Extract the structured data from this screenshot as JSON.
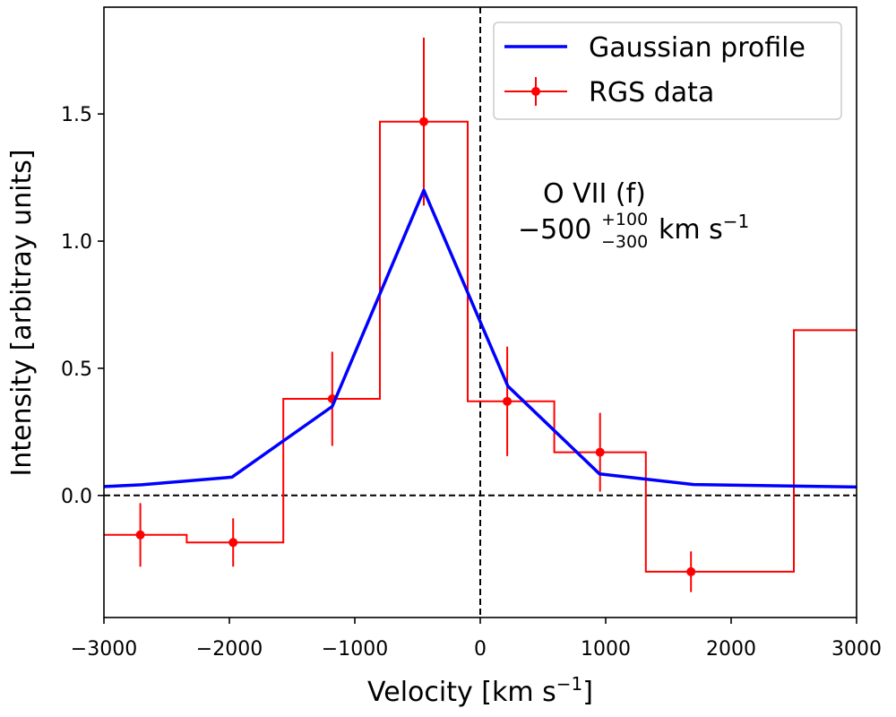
{
  "chart_data": {
    "type": "line",
    "xlabel": "Velocity [km s",
    "xlabel_sup": "−1",
    "xlabel_end": "]",
    "ylabel": "Intensity [arbitray units]",
    "xlim": [
      -3000,
      3000
    ],
    "ylim": [
      -0.48,
      1.92
    ],
    "xticks": [
      -3000,
      -2000,
      -1000,
      0,
      1000,
      2000,
      3000
    ],
    "xtick_labels": [
      "−3000",
      "−2000",
      "−1000",
      "0",
      "1000",
      "2000",
      "3000"
    ],
    "yticks": [
      0.0,
      0.5,
      1.0,
      1.5
    ],
    "ytick_labels": [
      "0.0",
      "0.5",
      "1.0",
      "1.5"
    ],
    "reference_lines": {
      "x": 0,
      "y": 0
    },
    "series": [
      {
        "name": "Gaussian profile",
        "kind": "line",
        "color": "#0000ff",
        "x": [
          -3000,
          -2700,
          -1980,
          -1180,
          -450,
          220,
          950,
          1700,
          3000
        ],
        "y": [
          0.035,
          0.042,
          0.072,
          0.35,
          1.2,
          0.43,
          0.085,
          0.043,
          0.033
        ]
      },
      {
        "name": "RGS data",
        "kind": "step-errorbar",
        "color": "#ff0000",
        "bin_edges": [
          -3000,
          -2340,
          -1570,
          -800,
          -100,
          590,
          1320,
          2500,
          3000
        ],
        "values": [
          -0.155,
          -0.185,
          0.38,
          1.47,
          0.37,
          0.17,
          -0.3,
          0.65
        ],
        "points": [
          {
            "x": -2710,
            "y": -0.155,
            "err": 0.125
          },
          {
            "x": -1970,
            "y": -0.185,
            "err": 0.095
          },
          {
            "x": -1180,
            "y": 0.38,
            "err": 0.185
          },
          {
            "x": -450,
            "y": 1.47,
            "err": 0.33
          },
          {
            "x": 215,
            "y": 0.37,
            "err": 0.215
          },
          {
            "x": 955,
            "y": 0.17,
            "err": 0.155
          },
          {
            "x": 1680,
            "y": -0.3,
            "err": 0.08
          }
        ]
      }
    ],
    "legend": {
      "position": "top-right",
      "entries": [
        "Gaussian profile",
        "RGS data"
      ]
    },
    "annotation": {
      "line1": "O VII (f)",
      "main": "−500",
      "sup": "+100",
      "sub": "−300",
      "unit": " km s",
      "unit_sup": "−1"
    }
  }
}
